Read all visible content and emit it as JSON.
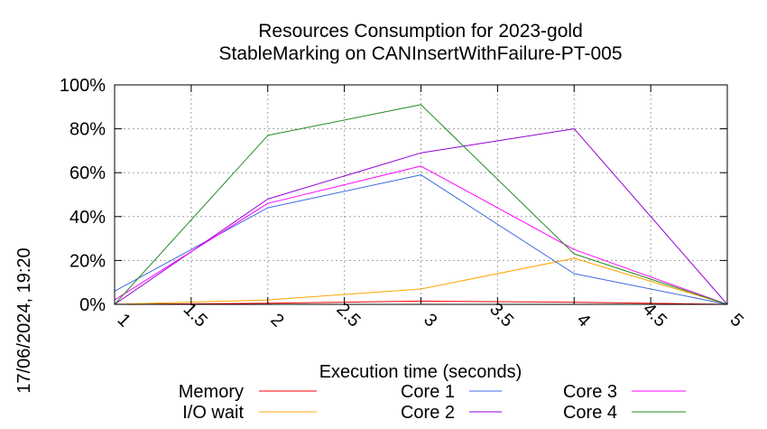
{
  "chart_data": {
    "type": "line",
    "title": "Resources Consumption for 2023-gold",
    "subtitle": "StableMarking on CANInsertWithFailure-PT-005",
    "xlabel": "Execution time (seconds)",
    "ylabel": "",
    "timestamp": "17/06/2024, 19:20",
    "xlim": [
      1,
      5
    ],
    "ylim": [
      0,
      100
    ],
    "x_ticks": [
      "1",
      "1.5",
      "2",
      "2.5",
      "3",
      "3.5",
      "4",
      "4.5",
      "5"
    ],
    "y_ticks": [
      "0%",
      "20%",
      "40%",
      "60%",
      "80%",
      "100%"
    ],
    "grid": true,
    "legend_position": "bottom",
    "series": [
      {
        "name": "Memory",
        "color": "#ff0000",
        "x": [
          1,
          2,
          3,
          4,
          5
        ],
        "y": [
          0,
          0.5,
          1.5,
          1,
          0
        ]
      },
      {
        "name": "I/O wait",
        "color": "#ffa500",
        "x": [
          1,
          2,
          3,
          4,
          5
        ],
        "y": [
          0,
          2,
          7,
          21,
          0
        ]
      },
      {
        "name": "Core 1",
        "color": "#4169e1",
        "x": [
          1,
          2,
          3,
          4,
          5
        ],
        "y": [
          6,
          44,
          59,
          14,
          0
        ]
      },
      {
        "name": "Core 2",
        "color": "#9400d3",
        "x": [
          1,
          2,
          3,
          4,
          5
        ],
        "y": [
          0,
          48,
          69,
          80,
          0
        ]
      },
      {
        "name": "Core 3",
        "color": "#ff00ff",
        "x": [
          1,
          2,
          3,
          4,
          5
        ],
        "y": [
          2,
          46,
          63,
          25,
          0
        ]
      },
      {
        "name": "Core 4",
        "color": "#228b22",
        "x": [
          1,
          2,
          3,
          4,
          5
        ],
        "y": [
          0,
          77,
          91,
          23,
          0
        ]
      }
    ]
  }
}
